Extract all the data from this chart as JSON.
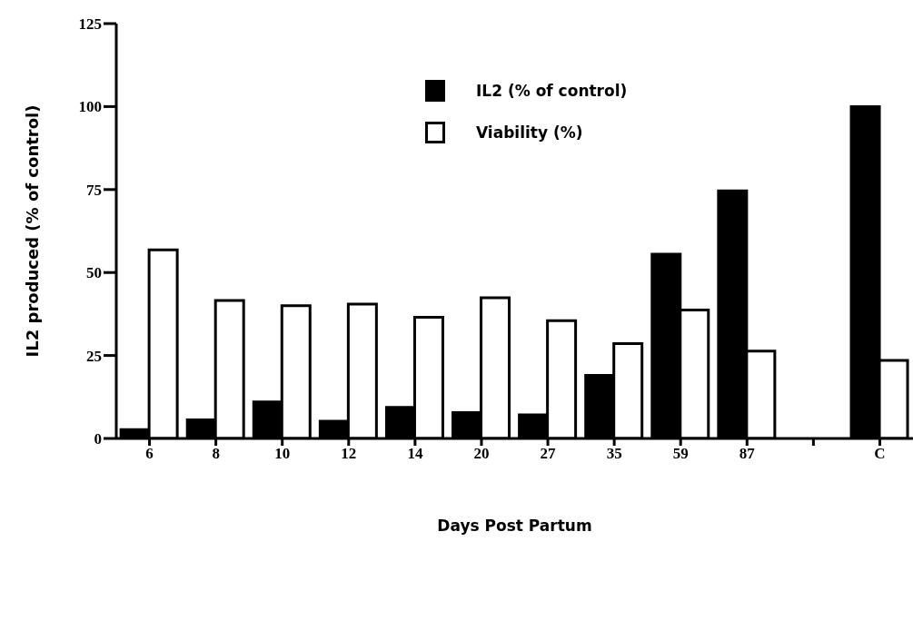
{
  "chart_data": {
    "type": "bar",
    "xlabel": "Days Post Partum",
    "ylabel": "IL2 produced (% of control)",
    "categories": [
      "6",
      "8",
      "10",
      "12",
      "14",
      "20",
      "27",
      "35",
      "59",
      "87",
      null,
      "C"
    ],
    "series": [
      {
        "name": "IL2 (% of control)",
        "color": "#000000",
        "values": [
          2.7,
          5.6,
          11,
          5.2,
          9.4,
          7.8,
          7.1,
          19,
          55.5,
          74.6,
          null,
          100
        ]
      },
      {
        "name": "Viability (%)",
        "color": "#ffffff",
        "values": [
          56.8,
          41.6,
          40,
          40.5,
          36.5,
          42.4,
          35.5,
          28.6,
          38.7,
          26.3,
          null,
          23.5
        ]
      }
    ],
    "ylim": [
      0,
      125
    ],
    "yticks": [
      0,
      25,
      50,
      75,
      100,
      125
    ],
    "grid": false,
    "legend": "top"
  }
}
